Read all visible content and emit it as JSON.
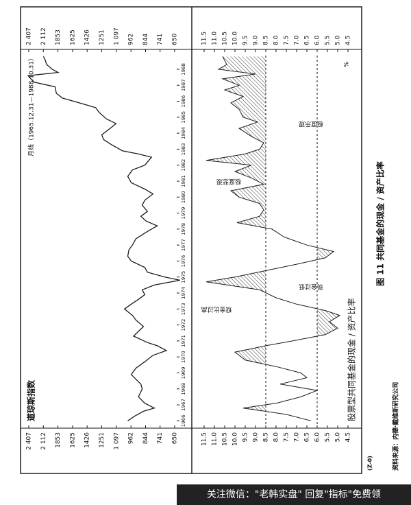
{
  "chart_data": [
    {
      "type": "line",
      "title": "道琼斯指数",
      "subtitle": "月线（1965.12.31—1988.10.31）",
      "x": [
        1966.0,
        1966.3,
        1966.6,
        1966.8,
        1967.1,
        1967.5,
        1968.0,
        1968.3,
        1968.6,
        1968.9,
        1969.3,
        1969.7,
        1970.1,
        1970.4,
        1970.7,
        1970.9,
        1971.3,
        1971.6,
        1971.9,
        1972.3,
        1972.6,
        1973.0,
        1973.3,
        1973.6,
        1973.9,
        1974.2,
        1974.5,
        1974.8,
        1975.0,
        1975.3,
        1975.6,
        1976.0,
        1976.3,
        1976.7,
        1977.0,
        1977.4,
        1977.9,
        1978.2,
        1978.5,
        1978.8,
        1979.1,
        1979.5,
        1979.8,
        1980.2,
        1980.5,
        1980.9,
        1981.3,
        1981.7,
        1982.0,
        1982.5,
        1982.7,
        1982.9,
        1983.3,
        1983.6,
        1983.9,
        1984.3,
        1984.6,
        1984.9,
        1985.3,
        1985.6,
        1985.9,
        1986.2,
        1986.5,
        1986.9,
        1987.2,
        1987.6,
        1987.8,
        1988.0,
        1988.3,
        1988.6,
        1988.8
      ],
      "values": [
        990,
        930,
        860,
        780,
        850,
        900,
        870,
        880,
        920,
        960,
        920,
        850,
        790,
        700,
        760,
        830,
        940,
        900,
        860,
        920,
        950,
        1020,
        960,
        900,
        850,
        870,
        780,
        620,
        710,
        830,
        850,
        960,
        990,
        980,
        950,
        920,
        820,
        760,
        840,
        880,
        830,
        870,
        850,
        790,
        850,
        960,
        990,
        950,
        850,
        800,
        900,
        1040,
        1150,
        1230,
        1250,
        1160,
        1100,
        1200,
        1280,
        1320,
        1530,
        1780,
        1880,
        1900,
        2300,
        2420,
        1850,
        1950,
        2050,
        2080,
        2110
      ],
      "xlim": [
        1965.8,
        1988.9
      ],
      "xticks": [
        1966,
        1967,
        1968,
        1969,
        1970,
        1971,
        1972,
        1973,
        1974,
        1975,
        1976,
        1977,
        1978,
        1979,
        1980,
        1981,
        1982,
        1983,
        1984,
        1985,
        1986,
        1987,
        1988
      ],
      "ylim": [
        650,
        2407
      ],
      "log_scale": true,
      "yticks": [
        {
          "value": 2407,
          "label": "2 407"
        },
        {
          "value": 2112,
          "label": "2 112"
        },
        1853,
        1625,
        1426,
        1251,
        {
          "value": 1097,
          "label": "1 097"
        },
        962,
        844,
        741,
        650
      ],
      "color": "#1a1a1a"
    },
    {
      "type": "line",
      "title": "股票型共同基金的现金 / 资产比率",
      "unit": "%",
      "x": [
        1966.0,
        1966.4,
        1966.8,
        1967.1,
        1967.5,
        1967.9,
        1968.3,
        1968.7,
        1969.0,
        1969.4,
        1969.8,
        1970.3,
        1970.7,
        1971.0,
        1971.4,
        1971.8,
        1972.2,
        1972.6,
        1972.9,
        1973.3,
        1973.7,
        1974.2,
        1974.7,
        1975.0,
        1975.4,
        1975.8,
        1976.2,
        1976.6,
        1977.0,
        1977.5,
        1978.0,
        1978.4,
        1978.8,
        1979.2,
        1979.6,
        1980.0,
        1980.4,
        1980.8,
        1981.2,
        1981.6,
        1982.0,
        1982.3,
        1982.7,
        1983.0,
        1983.4,
        1983.8,
        1984.3,
        1984.7,
        1985.0,
        1985.5,
        1985.9,
        1986.3,
        1986.7,
        1987.0,
        1987.4,
        1987.7,
        1988.0,
        1988.3,
        1988.8
      ],
      "values": [
        6.3,
        7.5,
        9.6,
        8.0,
        6.8,
        6.0,
        7.8,
        6.5,
        6.8,
        8.0,
        9.5,
        10.0,
        8.5,
        7.2,
        5.6,
        5.0,
        5.4,
        4.9,
        5.6,
        7.0,
        8.0,
        8.8,
        11.4,
        10.0,
        8.5,
        7.0,
        5.6,
        5.2,
        6.5,
        7.6,
        8.2,
        9.9,
        8.8,
        8.6,
        8.8,
        9.8,
        10.2,
        8.6,
        9.2,
        10.0,
        9.2,
        11.4,
        9.5,
        8.8,
        8.6,
        9.2,
        9.8,
        8.9,
        9.6,
        9.8,
        10.2,
        9.6,
        10.5,
        9.8,
        10.6,
        9.0,
        10.8,
        10.4,
        10.6
      ],
      "xlim": [
        1965.8,
        1988.9
      ],
      "ylim": [
        4.5,
        11.5
      ],
      "yticks": [
        11.5,
        {
          "value": 11,
          "label": "11.0"
        },
        10.5,
        {
          "value": 10,
          "label": "10.0"
        },
        9.5,
        {
          "value": 9,
          "label": "9.0"
        },
        8.5,
        {
          "value": 8,
          "label": "8.0"
        },
        7.5,
        {
          "value": 7,
          "label": "7.0"
        },
        6.5,
        {
          "value": 6,
          "label": "6.0"
        },
        5.5,
        {
          "value": 5,
          "label": "5.0"
        },
        4.5
      ],
      "reference_lines": [
        8.5,
        6.0
      ],
      "annotations": [
        "现金比过高",
        "现金过低",
        "极度悲观",
        "极度乐观"
      ],
      "color": "#1a1a1a"
    }
  ],
  "code": "(Z-0)",
  "source": "资料来源：内德·戴维斯研究公司",
  "figure_title": "图 11   共同基金的现金 / 资产比率",
  "watermark": "关注微信：\"老韩实盘\" 回复\"指标\"免费领"
}
